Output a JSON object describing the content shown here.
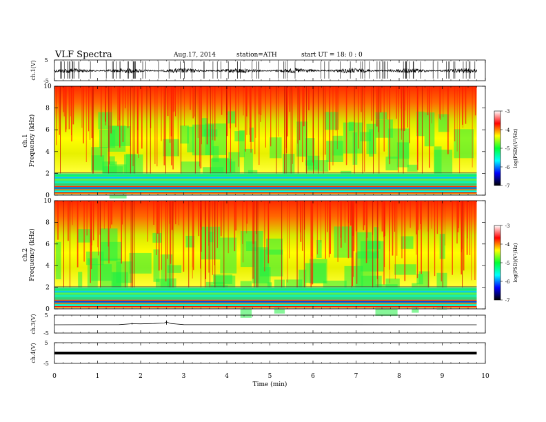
{
  "header": {
    "title": "VLF  Spectra",
    "date": "Aug.17, 2014",
    "station": "station=ATH",
    "start": "start  UT  =   18: 0  : 0"
  },
  "colors": {
    "background": "#ffffff",
    "frame": "#000000",
    "colormap": [
      "#000000",
      "#0000ff",
      "#00ffff",
      "#00ff33",
      "#ffff00",
      "#ff0000",
      "#ffffff"
    ]
  },
  "chart_data": [
    {
      "type": "line",
      "panel": "ch1",
      "ylabel": "ch.1(V)",
      "ylim": [
        -5,
        5
      ],
      "yticklabels": [
        "5",
        "-5"
      ],
      "xlim": [
        0,
        10
      ],
      "series": [
        {
          "x": [
            0,
            9.8
          ],
          "y_level": 0,
          "noise_amplitude": 1.2
        }
      ]
    },
    {
      "type": "heatmap",
      "panel": "ch1-spectrogram",
      "ylabel": "ch.1\nFrequency  (kHz)",
      "ylim": [
        0,
        10
      ],
      "yticklabels": [
        "0",
        "2",
        "4",
        "6",
        "8",
        "10"
      ],
      "xlim": [
        0,
        9.8
      ],
      "colorbar": {
        "label": "log(PSD)(V²/Hz)",
        "ticks": [
          "-3",
          "-4",
          "-5",
          "-6",
          "-7"
        ],
        "range": [
          -7,
          -3
        ]
      }
    },
    {
      "type": "heatmap",
      "panel": "ch2-spectrogram",
      "ylabel": "ch.2\nFrequency  (kHz)",
      "ylim": [
        0,
        10
      ],
      "yticklabels": [
        "0",
        "2",
        "4",
        "6",
        "8",
        "10"
      ],
      "xlim": [
        0,
        9.8
      ],
      "colorbar": {
        "label": "log(PSD)(V²/Hz)",
        "ticks": [
          "-3",
          "-4",
          "-5",
          "-6",
          "-7"
        ],
        "range": [
          -7,
          -3
        ]
      }
    },
    {
      "type": "line",
      "panel": "ch3",
      "ylabel": "ch.3(V)",
      "ylim": [
        -5,
        5
      ],
      "yticklabels": [
        "5",
        "-5"
      ],
      "xlim": [
        0,
        10
      ],
      "series": [
        {
          "x": [
            0,
            1.5,
            1.8,
            2.0,
            2.3,
            2.55,
            2.6,
            2.7,
            3.0,
            9.8
          ],
          "y": [
            -0.4,
            -0.3,
            0.2,
            0.1,
            0.3,
            0.6,
            1.2,
            0.3,
            -0.3,
            -0.4
          ]
        }
      ]
    },
    {
      "type": "line",
      "panel": "ch4",
      "ylabel": "ch.4(V)",
      "ylim": [
        -5,
        5
      ],
      "yticklabels": [
        "5",
        "-5"
      ],
      "xlim": [
        0,
        10
      ],
      "series": [
        {
          "x": [
            0,
            9.8
          ],
          "y": [
            0,
            0
          ]
        }
      ]
    },
    {
      "xlabel": "Time  (min)",
      "xticklabels": [
        "0",
        "1",
        "2",
        "3",
        "4",
        "5",
        "6",
        "7",
        "8",
        "9",
        "10"
      ]
    }
  ]
}
